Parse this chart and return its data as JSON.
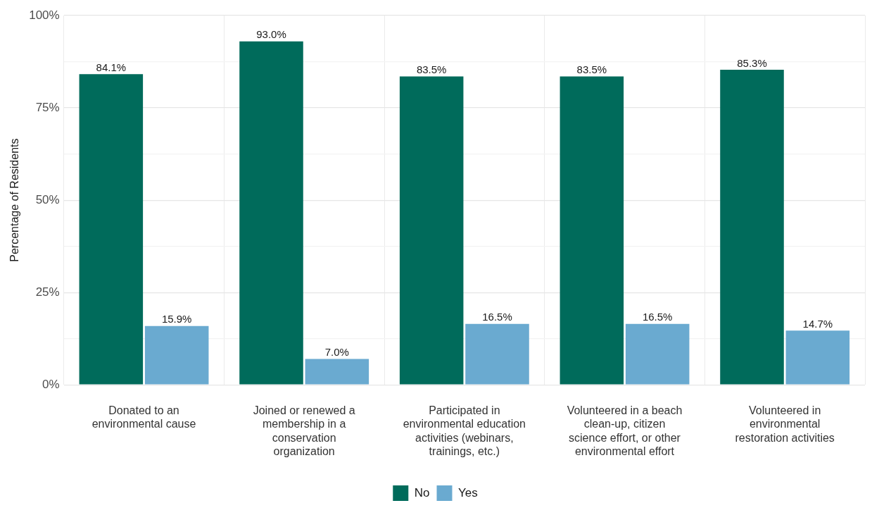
{
  "chart_data": {
    "type": "bar",
    "ylabel": "Percentage of Residents",
    "categories": [
      "Donated to an environmental cause",
      "Joined or renewed a membership in a conservation organization",
      "Participated in environmental education activities (webinars, trainings, etc.)",
      "Volunteered in a beach clean-up, citizen science effort, or other environmental effort",
      "Volunteered in environmental restoration activities"
    ],
    "series": [
      {
        "name": "No",
        "color": "#006b5b",
        "values": [
          84.1,
          93.0,
          83.5,
          83.5,
          85.3
        ],
        "value_labels": [
          "84.1%",
          "93.0%",
          "83.5%",
          "83.5%",
          "85.3%"
        ]
      },
      {
        "name": "Yes",
        "color": "#6aaad0",
        "values": [
          15.9,
          7.0,
          16.5,
          16.5,
          14.7
        ],
        "value_labels": [
          "15.9%",
          "7.0%",
          "16.5%",
          "16.5%",
          "14.7%"
        ]
      }
    ],
    "ylim": [
      0,
      100
    ],
    "yticks": [
      {
        "value": 0,
        "label": "0%"
      },
      {
        "value": 12.5,
        "label": null
      },
      {
        "value": 25,
        "label": "25%"
      },
      {
        "value": 37.5,
        "label": null
      },
      {
        "value": 50,
        "label": "50%"
      },
      {
        "value": 62.5,
        "label": null
      },
      {
        "value": 75,
        "label": "75%"
      },
      {
        "value": 87.5,
        "label": null
      },
      {
        "value": 100,
        "label": "100%"
      }
    ],
    "grid": true,
    "legend": "bottom"
  }
}
